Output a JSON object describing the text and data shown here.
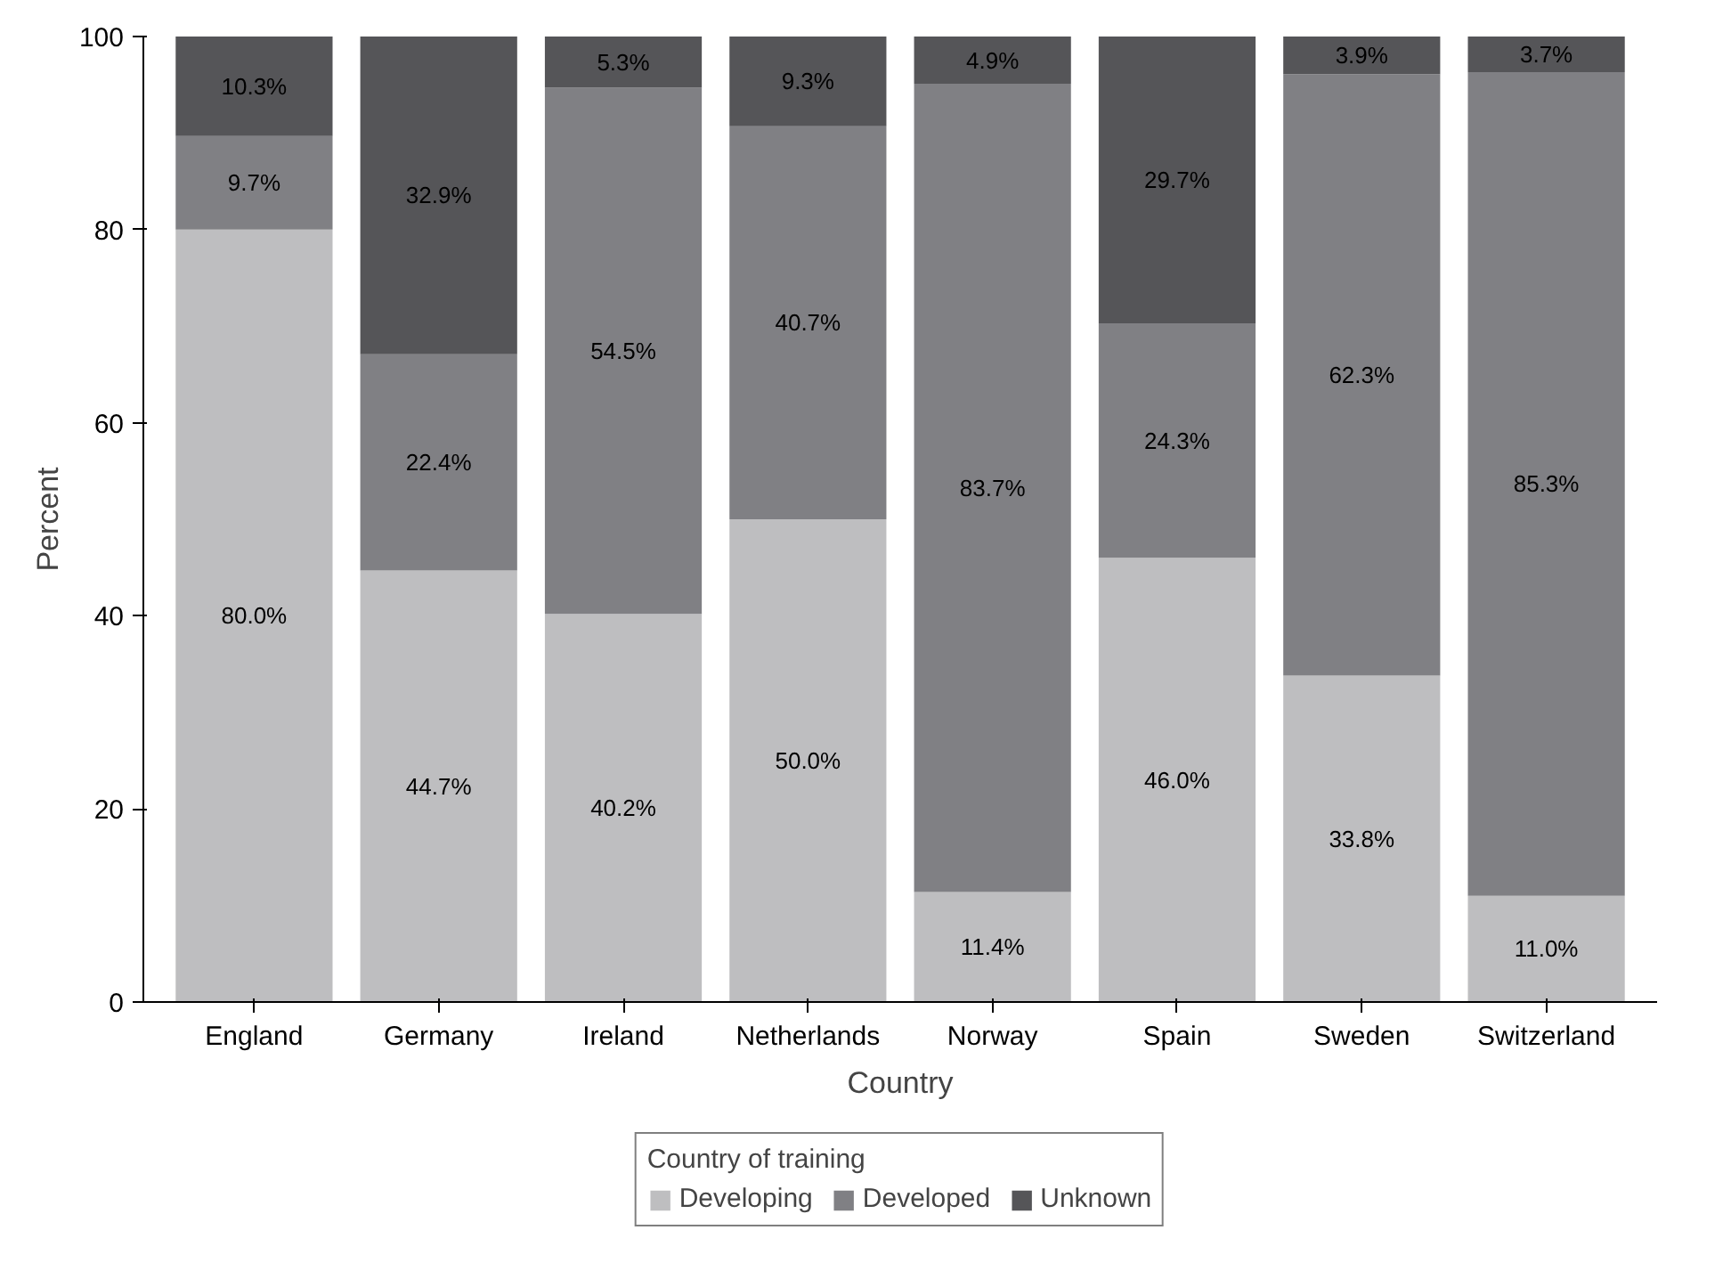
{
  "chart_data": {
    "type": "bar",
    "stacked": true,
    "xlabel": "Country",
    "ylabel": "Percent",
    "legend_title": "Country of training",
    "legend": "bottom",
    "grid": false,
    "categories": [
      "England",
      "Germany",
      "Ireland",
      "Netherlands",
      "Norway",
      "Spain",
      "Sweden",
      "Switzerland"
    ],
    "ylim": [
      0,
      100
    ],
    "yticks": [
      0,
      20,
      40,
      60,
      80,
      100
    ],
    "series": [
      {
        "name": "Developing",
        "color": "#bebec0",
        "values": [
          80.0,
          44.7,
          40.2,
          50.0,
          11.4,
          46.0,
          33.8,
          11.0
        ],
        "value_labels": [
          "80.0%",
          "44.7%",
          "40.2%",
          "50.0%",
          "11.4%",
          "46.0%",
          "33.8%",
          "11.0%"
        ]
      },
      {
        "name": "Developed",
        "color": "#808084",
        "values": [
          9.7,
          22.4,
          54.5,
          40.7,
          83.7,
          24.3,
          62.3,
          85.3
        ],
        "value_labels": [
          "9.7%",
          "22.4%",
          "54.5%",
          "40.7%",
          "83.7%",
          "24.3%",
          "62.3%",
          "85.3%"
        ]
      },
      {
        "name": "Unknown",
        "color": "#555558",
        "values": [
          10.3,
          32.9,
          5.3,
          9.3,
          4.9,
          29.7,
          3.9,
          3.7
        ],
        "value_labels": [
          "10.3%",
          "32.9%",
          "5.3%",
          "9.3%",
          "4.9%",
          "29.7%",
          "3.9%",
          "3.7%"
        ]
      }
    ]
  }
}
